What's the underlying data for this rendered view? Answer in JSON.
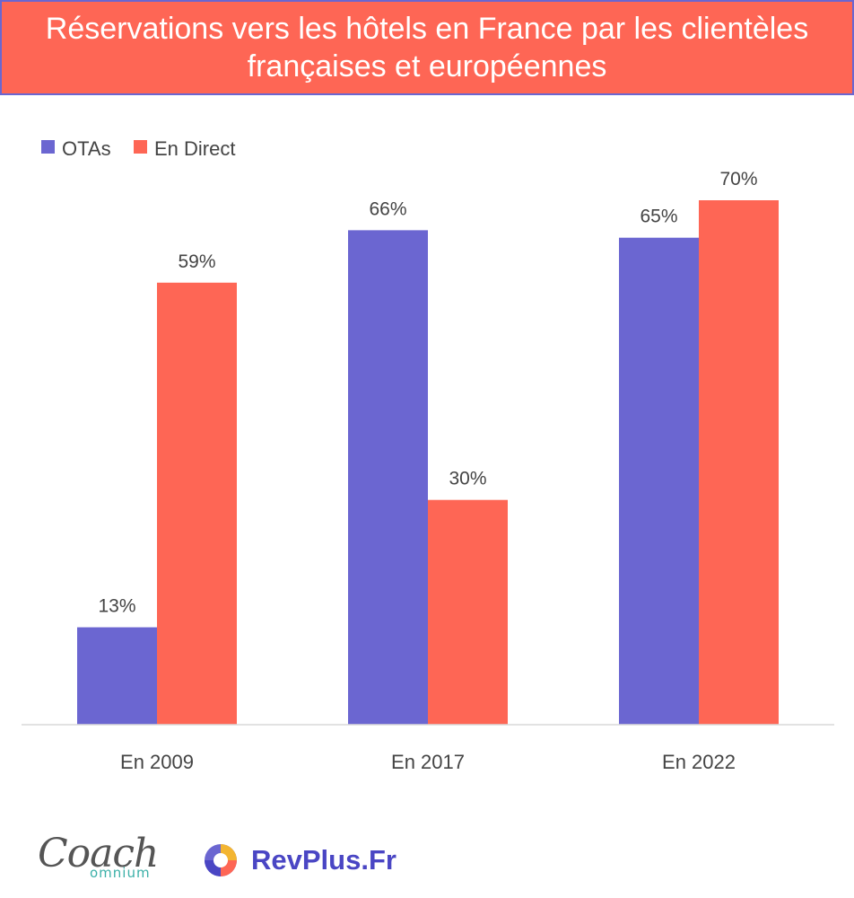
{
  "title": "Réservations vers les hôtels en France par les clientèles françaises et européennes",
  "chart_data": {
    "type": "bar",
    "categories": [
      "En 2009",
      "En 2017",
      "En 2022"
    ],
    "series": [
      {
        "name": "OTAs",
        "values": [
          13,
          66,
          65
        ],
        "labels": [
          "13%",
          "66%",
          "65%"
        ],
        "color": "#6b66d1"
      },
      {
        "name": "En Direct",
        "values": [
          59,
          30,
          70
        ],
        "labels": [
          "59%",
          "30%",
          "70%"
        ],
        "color": "#fe6655"
      }
    ],
    "ylim": [
      0,
      70
    ],
    "legend_position": "top-left",
    "grid": false
  },
  "footer": {
    "coach_logo": {
      "word1": "Coach",
      "word2": "omnium"
    },
    "revplus": {
      "text": "RevPlus.Fr",
      "icon": "revplus-logo-icon"
    }
  }
}
